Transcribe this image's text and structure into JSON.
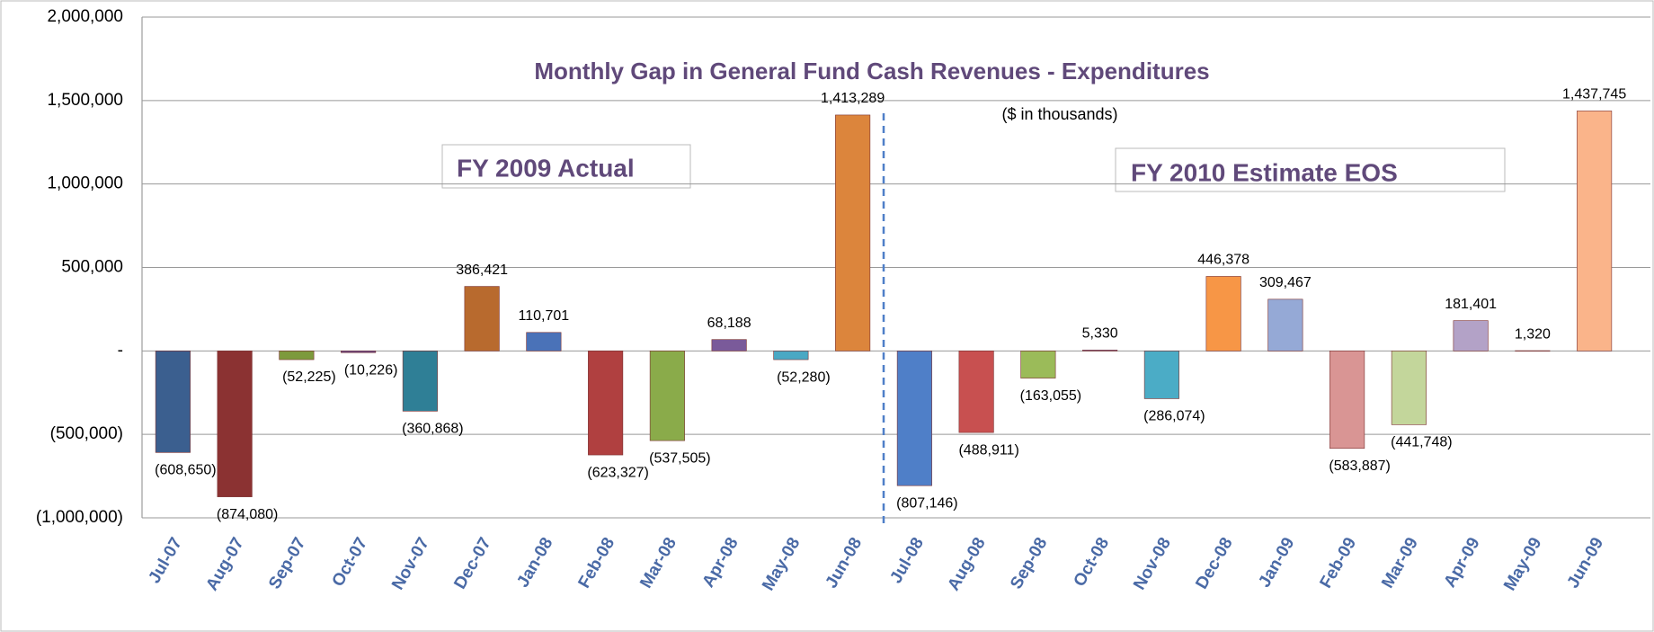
{
  "chart_data": {
    "type": "bar",
    "title": "Monthly Gap in General Fund Cash Revenues - Expenditures",
    "subtitle": "($ in thousands)",
    "annotations": [
      "FY 2009 Actual",
      "FY 2010 Estimate EOS"
    ],
    "categories": [
      "Jul-07",
      "Aug-07",
      "Sep-07",
      "Oct-07",
      "Nov-07",
      "Dec-07",
      "Jan-08",
      "Feb-08",
      "Mar-08",
      "Apr-08",
      "May-08",
      "Jun-08",
      "Jul-08",
      "Aug-08",
      "Sep-08",
      "Oct-08",
      "Nov-08",
      "Dec-08",
      "Jan-09",
      "Feb-09",
      "Mar-09",
      "Apr-09",
      "May-09",
      "Jun-09"
    ],
    "values": [
      -608650,
      -874080,
      -52225,
      -10226,
      -360868,
      386421,
      110701,
      -623327,
      -537505,
      68188,
      -52280,
      1413289,
      -807146,
      -488911,
      -163055,
      5330,
      -286074,
      446378,
      309467,
      -583887,
      -441748,
      181401,
      1320,
      1437745
    ],
    "value_labels": [
      "(608,650)",
      "(874,080)",
      "(52,225)",
      "(10,226)",
      "(360,868)",
      "386,421",
      "110,701",
      "(623,327)",
      "(537,505)",
      "68,188",
      "(52,280)",
      "1,413,289",
      "(807,146)",
      "(488,911)",
      "(163,055)",
      "5,330",
      "(286,074)",
      "446,378",
      "309,467",
      "(583,887)",
      "(441,748)",
      "181,401",
      "1,320",
      "1,437,745"
    ],
    "colors": [
      "#3b5f8f",
      "#8b3232",
      "#7d9a3c",
      "#6a4c8c",
      "#2f7f96",
      "#b86a2e",
      "#4a72b8",
      "#b04040",
      "#8aab4a",
      "#7a5a9a",
      "#4aa8c4",
      "#dc853c",
      "#4f7fc8",
      "#c85050",
      "#9bbb59",
      "#8064a2",
      "#4bacc6",
      "#f79646",
      "#95a9d6",
      "#d99594",
      "#c3d69b",
      "#b3a2c7",
      "#93cddd",
      "#fab48a"
    ],
    "ylim": [
      -1000000,
      2000000
    ],
    "yticks": [
      {
        "value": -1000000,
        "label": "(1,000,000)"
      },
      {
        "value": -500000,
        "label": "(500,000)"
      },
      {
        "value": 0,
        "label": "-"
      },
      {
        "value": 500000,
        "label": "500,000"
      },
      {
        "value": 1000000,
        "label": "1,000,000"
      },
      {
        "value": 1500000,
        "label": "1,500,000"
      },
      {
        "value": 2000000,
        "label": "2,000,000"
      }
    ],
    "grid": true
  }
}
